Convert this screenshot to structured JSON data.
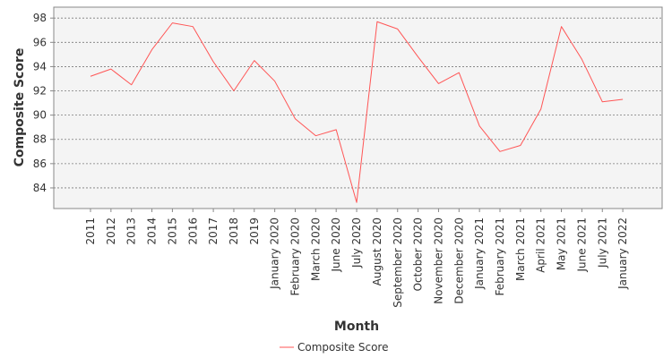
{
  "chart_data": {
    "type": "line",
    "title": "",
    "xlabel": "Month",
    "ylabel": "Composite Score",
    "categories": [
      "2011",
      "2012",
      "2013",
      "2014",
      "2015",
      "2016",
      "2017",
      "2018",
      "2019",
      "January 2020",
      "February 2020",
      "March 2020",
      "June 2020",
      "July 2020",
      "August 2020",
      "September 2020",
      "October 2020",
      "November 2020",
      "December 2020",
      "January 2021",
      "February 2021",
      "March 2021",
      "April 2021",
      "May 2021",
      "June 2021",
      "July 2021",
      "January 2022"
    ],
    "series": [
      {
        "name": "Composite Score",
        "color": "#ff5555",
        "values": [
          93.2,
          93.8,
          92.5,
          95.4,
          97.6,
          97.3,
          94.4,
          92.0,
          94.5,
          92.8,
          89.7,
          88.3,
          88.8,
          82.8,
          97.7,
          97.1,
          94.8,
          92.6,
          93.5,
          89.1,
          87.0,
          87.5,
          90.5,
          97.3,
          94.6,
          91.1,
          91.3
        ]
      }
    ],
    "yticks": [
      84,
      86,
      88,
      90,
      92,
      94,
      96,
      98
    ],
    "ylim": [
      82.3,
      98.9
    ],
    "grid": true,
    "legend": "bottom-center",
    "colors": {
      "plot_background": "#f4f4f4",
      "grid": "#7a7a7a",
      "frame": "#888888"
    }
  }
}
